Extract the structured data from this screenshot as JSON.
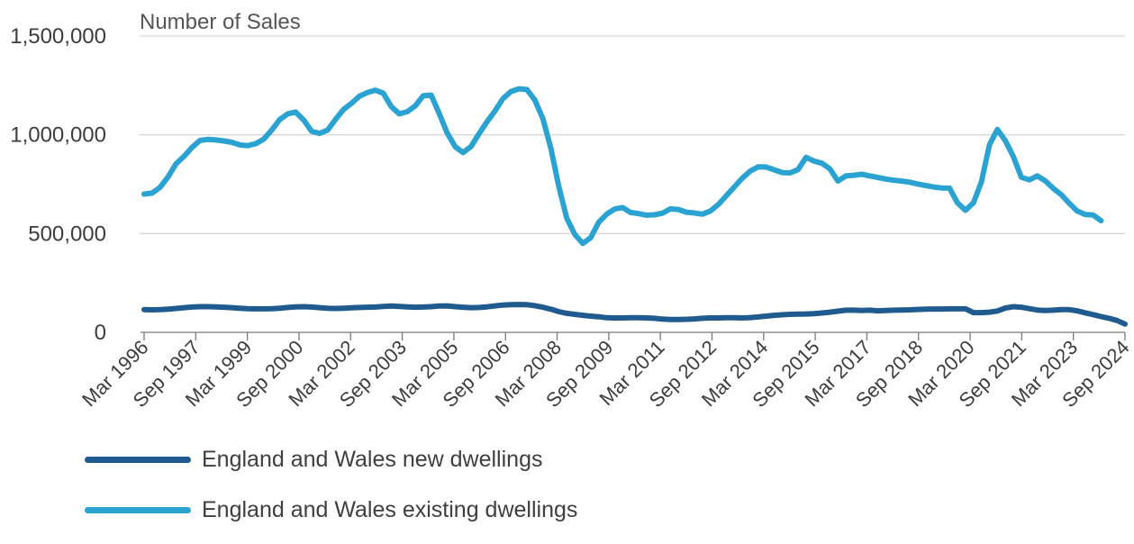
{
  "chart_data": {
    "type": "line",
    "unit_label": "Number of Sales",
    "ylim": [
      0,
      1500000
    ],
    "yticks": [
      "0",
      "500,000",
      "1,000,000",
      "1,500,000"
    ],
    "ytick_values": [
      0,
      500000,
      1000000,
      1500000
    ],
    "grid": true,
    "legend_position": "bottom",
    "x_tick_labels": [
      "Mar 1996",
      "Sep 1997",
      "Mar 1999",
      "Sep 2000",
      "Mar 2002",
      "Sep 2003",
      "Mar 2005",
      "Sep 2006",
      "Mar 2008",
      "Sep 2009",
      "Mar 2011",
      "Sep 2012",
      "Mar 2014",
      "Sep 2015",
      "Mar 2017",
      "Sep 2018",
      "Mar 2020",
      "Sep 2021",
      "Mar 2023",
      "Sep 2024"
    ],
    "x_start": "1996-03",
    "x_end": "2024-09",
    "series": [
      {
        "name": "England and Wales new dwellings",
        "color": "#1f5b8f",
        "values": [
          115000,
          114000,
          115000,
          117000,
          121000,
          125000,
          128000,
          130000,
          130000,
          129000,
          127000,
          125000,
          122000,
          120000,
          119000,
          119000,
          120000,
          122000,
          126000,
          129000,
          130000,
          128000,
          125000,
          122000,
          121000,
          122000,
          124000,
          126000,
          127000,
          128000,
          131000,
          133000,
          131000,
          129000,
          127000,
          128000,
          130000,
          133000,
          134000,
          130000,
          127000,
          125000,
          126000,
          129000,
          134000,
          138000,
          140000,
          141000,
          140000,
          135000,
          127000,
          117000,
          105000,
          96000,
          91000,
          86000,
          82000,
          79000,
          74000,
          73000,
          73000,
          74000,
          74000,
          73000,
          71000,
          67000,
          65000,
          65000,
          66000,
          68000,
          71000,
          73000,
          73000,
          74000,
          74000,
          73000,
          75000,
          78000,
          82000,
          86000,
          89000,
          91000,
          92000,
          93000,
          95000,
          98000,
          102000,
          107000,
          112000,
          112000,
          111000,
          112000,
          109000,
          111000,
          112000,
          113000,
          114000,
          116000,
          117000,
          118000,
          118000,
          119000,
          119000,
          119000,
          100000,
          100000,
          102000,
          108000,
          123000,
          130000,
          127000,
          120000,
          113000,
          111000,
          112000,
          115000,
          115000,
          109000,
          99000,
          90000,
          80000,
          71000,
          60000,
          42000
        ]
      },
      {
        "name": "England and Wales existing dwellings",
        "color": "#2ba3d2",
        "values": [
          700000,
          705000,
          734000,
          787000,
          853000,
          891000,
          936000,
          971000,
          977000,
          974000,
          969000,
          962000,
          949000,
          945000,
          955000,
          978000,
          1024000,
          1077000,
          1106000,
          1115000,
          1075000,
          1018000,
          1007000,
          1023000,
          1078000,
          1128000,
          1159000,
          1195000,
          1214000,
          1226000,
          1210000,
          1142000,
          1106000,
          1117000,
          1146000,
          1198000,
          1201000,
          1108000,
          1010000,
          940000,
          910000,
          941000,
          1006000,
          1066000,
          1121000,
          1183000,
          1219000,
          1233000,
          1229000,
          1176000,
          1082000,
          933000,
          738000,
          578000,
          496000,
          450000,
          479000,
          557000,
          598000,
          624000,
          632000,
          607000,
          601000,
          593000,
          595000,
          603000,
          625000,
          622000,
          608000,
          604000,
          598000,
          614000,
          647000,
          691000,
          736000,
          780000,
          816000,
          838000,
          837000,
          823000,
          809000,
          807000,
          824000,
          886000,
          867000,
          856000,
          827000,
          766000,
          792000,
          795000,
          800000,
          792000,
          784000,
          776000,
          770000,
          766000,
          760000,
          751000,
          743000,
          736000,
          731000,
          730000,
          655000,
          618000,
          656000,
          762000,
          949000,
          1027000,
          970000,
          890000,
          785000,
          772000,
          792000,
          767000,
          729000,
          697000,
          654000,
          614000,
          597000,
          594000,
          565000
        ]
      }
    ]
  }
}
